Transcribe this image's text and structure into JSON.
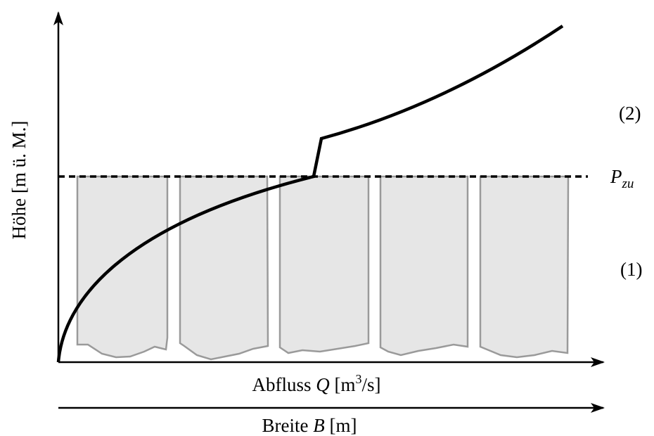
{
  "y_axis_label": "Höhe [m ü. M.]",
  "x_axis_label": {
    "text": "Abfluss",
    "symbol": "Q",
    "unit_open": "[m",
    "unit_power": "3",
    "unit_close": "/s]"
  },
  "width_axis_label": {
    "text": "Breite",
    "symbol": "B",
    "unit": "[m]"
  },
  "level_label": {
    "symbol": "P",
    "subscript": "zu"
  },
  "region_labels": [
    "(1)",
    "(2)"
  ]
}
